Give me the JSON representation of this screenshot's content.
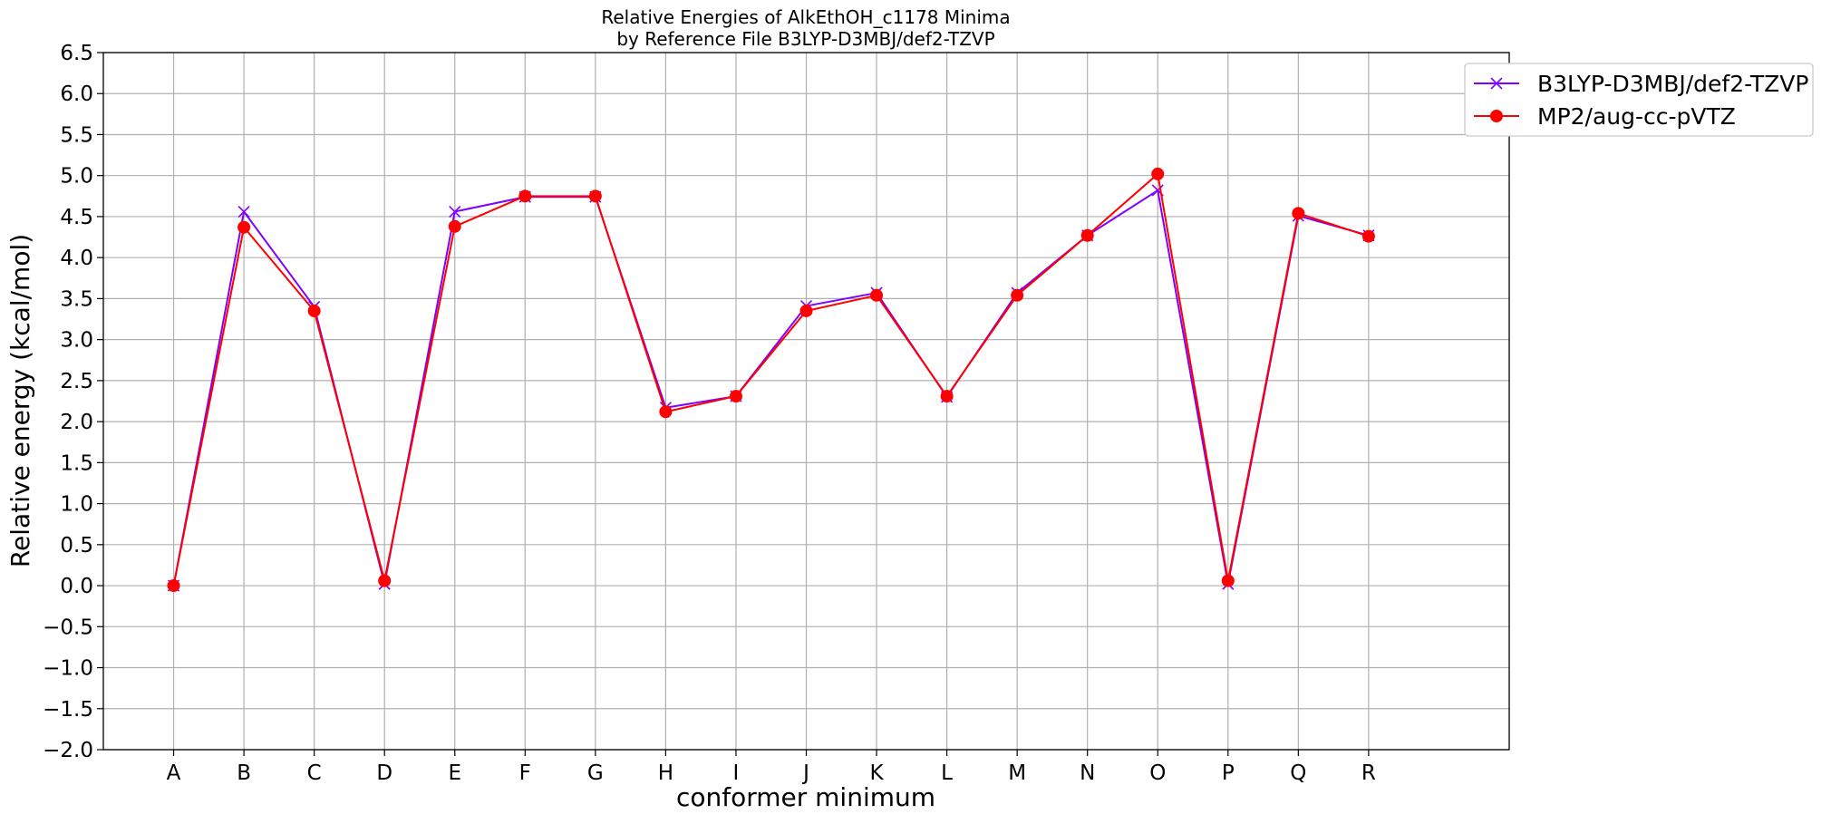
{
  "chart_data": {
    "type": "line",
    "title": "Relative Energies of AlkEthOH_c1178 Minima",
    "subtitle": "by Reference File B3LYP-D3MBJ/def2-TZVP",
    "xlabel": "conformer minimum",
    "ylabel": "Relative energy (kcal/mol)",
    "categories": [
      "A",
      "B",
      "C",
      "D",
      "E",
      "F",
      "G",
      "H",
      "I",
      "J",
      "K",
      "L",
      "M",
      "N",
      "O",
      "P",
      "Q",
      "R"
    ],
    "ylim": [
      -2.0,
      6.5
    ],
    "yticks": [
      "6.5",
      "6.0",
      "5.5",
      "5.0",
      "4.5",
      "4.0",
      "3.5",
      "3.0",
      "2.5",
      "2.0",
      "1.5",
      "1.0",
      "0.5",
      "0.0",
      "−0.5",
      "−1.0",
      "−1.5",
      "−2.0"
    ],
    "grid": true,
    "legend_position": "top-right, outside plot",
    "series": [
      {
        "name": "B3LYP-D3MBJ/def2-TZVP",
        "color": "#7f00ff",
        "marker": "x",
        "values": [
          0.0,
          4.56,
          3.4,
          0.02,
          4.56,
          4.74,
          4.74,
          2.17,
          2.31,
          3.41,
          3.57,
          2.3,
          3.57,
          4.27,
          4.82,
          0.02,
          4.51,
          4.27
        ]
      },
      {
        "name": "MP2/aug-cc-pVTZ",
        "color": "#ff0000",
        "marker": "circle",
        "values": [
          0.0,
          4.37,
          3.35,
          0.06,
          4.38,
          4.75,
          4.75,
          2.12,
          2.31,
          3.35,
          3.54,
          2.31,
          3.54,
          4.27,
          5.02,
          0.06,
          4.54,
          4.26
        ]
      }
    ]
  }
}
